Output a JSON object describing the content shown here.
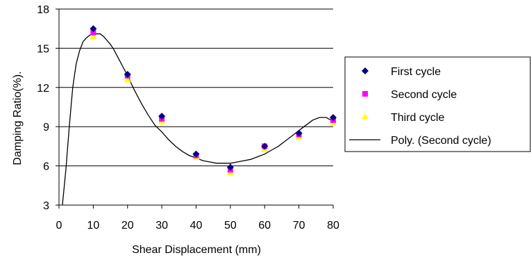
{
  "chart_data": {
    "type": "scatter",
    "xlabel": "Shear Displacement (mm)",
    "ylabel": "Damping Ratio(%).",
    "xlim": [
      0,
      80
    ],
    "ylim": [
      3,
      18
    ],
    "xticks": [
      "0",
      "10",
      "20",
      "30",
      "40",
      "50",
      "60",
      "70",
      "80"
    ],
    "yticks": [
      "3",
      "6",
      "9",
      "12",
      "15",
      "18"
    ],
    "ytick_values": [
      3,
      6,
      9,
      12,
      15,
      18
    ],
    "xtick_values": [
      0,
      10,
      20,
      30,
      40,
      50,
      60,
      70,
      80
    ],
    "grid": "horizontal",
    "legend_position": "right",
    "x": [
      10,
      20,
      30,
      40,
      50,
      60,
      70,
      80
    ],
    "series": [
      {
        "name": "First cycle",
        "marker": "diamond",
        "color": "#000080",
        "values": [
          16.5,
          13.0,
          9.8,
          6.9,
          5.9,
          7.5,
          8.5,
          9.7
        ]
      },
      {
        "name": "Second cycle",
        "marker": "square",
        "color": "#ff00ff",
        "values": [
          16.2,
          12.9,
          9.6,
          6.8,
          5.7,
          7.5,
          8.4,
          9.5
        ]
      },
      {
        "name": "Third cycle",
        "marker": "triangle",
        "color": "#ffff00",
        "values": [
          15.9,
          12.6,
          9.4,
          6.7,
          5.5,
          7.3,
          8.2,
          9.3
        ]
      },
      {
        "name": "Poly. (Second cycle)",
        "marker": "line",
        "color": "#000000",
        "x": [
          1,
          2,
          3,
          4,
          5,
          6,
          7,
          8,
          9,
          10,
          11,
          12,
          13,
          14,
          15,
          16,
          17,
          18,
          19,
          20,
          22,
          24,
          26,
          28,
          30,
          32,
          34,
          36,
          38,
          40,
          42,
          44,
          46,
          48,
          50,
          52,
          54,
          56,
          58,
          60,
          62,
          64,
          66,
          68,
          70,
          72,
          74,
          76,
          78,
          80
        ],
        "values": [
          3.0,
          5.7,
          9.0,
          12.0,
          13.8,
          14.8,
          15.5,
          15.8,
          16.0,
          16.1,
          16.1,
          16.1,
          15.9,
          15.6,
          15.3,
          14.9,
          14.4,
          13.9,
          13.4,
          12.9,
          11.8,
          10.8,
          9.9,
          9.1,
          8.6,
          8.0,
          7.5,
          7.1,
          6.8,
          6.6,
          6.4,
          6.3,
          6.2,
          6.2,
          6.2,
          6.3,
          6.4,
          6.5,
          6.7,
          6.9,
          7.2,
          7.5,
          7.9,
          8.3,
          8.7,
          9.1,
          9.5,
          9.7,
          9.7,
          9.4
        ]
      }
    ]
  }
}
